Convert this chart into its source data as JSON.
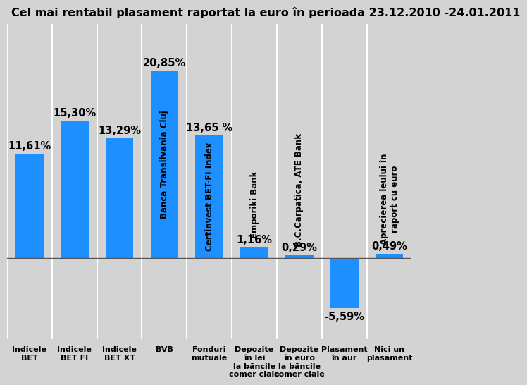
{
  "title": "Cel mai rentabil plasament raportat la euro în perioada 23.12.2010 -24.01.2011",
  "values": [
    11.61,
    15.3,
    13.29,
    20.85,
    13.65,
    1.16,
    0.29,
    -5.59,
    0.49
  ],
  "bar_labels": [
    "11,61%",
    "15,30%",
    "13,29%",
    "20,85%",
    "13,65 %",
    "1,16%",
    "0,29%",
    "-5,59%",
    "0,49%"
  ],
  "bar_color": "#1E8FFF",
  "background_color": "#D3D3D3",
  "bar_inner_labels": [
    null,
    null,
    null,
    "Banca Transilvania Cluj",
    "Certinvest BET-FI Index",
    "Emporiki Bank",
    "B.C.Carpatica, ATE Bank",
    null,
    "Aprecierea leului în\nraport cu euro"
  ],
  "x_labels": [
    "Indicele\nBET",
    "Indicele\nBET FI",
    "Indicele\nBET XT",
    "BVB",
    "Fonduri\nmutuale",
    "Depozite\nîn lei\nla băncile\ncomer ciale",
    "Depozite\nîn euro\nla băncile\ncomer ciale",
    "Plasament\nîn aur",
    "Nici un\nplasament"
  ],
  "title_fontsize": 11.5,
  "value_fontsize": 10.5,
  "inner_label_fontsize": 8.5,
  "xlabel_fontsize": 8,
  "ylim": [
    -9,
    26
  ],
  "bar_width": 0.62
}
